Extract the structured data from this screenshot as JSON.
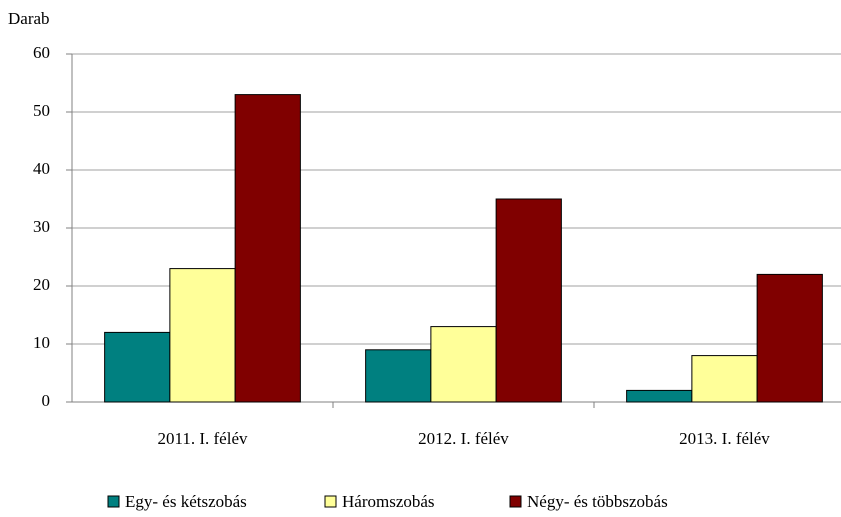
{
  "chart_data": {
    "type": "bar",
    "y_label": "Darab",
    "categories": [
      "2011. I. félév",
      "2012. I. félév",
      "2013. I. félév"
    ],
    "series": [
      {
        "name": "Egy- és kétszobás",
        "color": "#008080",
        "values": [
          12,
          9,
          2
        ]
      },
      {
        "name": "Háromszobás",
        "color": "#ffff99",
        "values": [
          23,
          13,
          8
        ]
      },
      {
        "name": "Négy- és többszobás",
        "color": "#800000",
        "values": [
          53,
          35,
          22
        ]
      }
    ],
    "ylim": [
      0,
      60
    ],
    "yticks": [
      0,
      10,
      20,
      30,
      40,
      50,
      60
    ],
    "grid": true,
    "legend": "bottom"
  }
}
